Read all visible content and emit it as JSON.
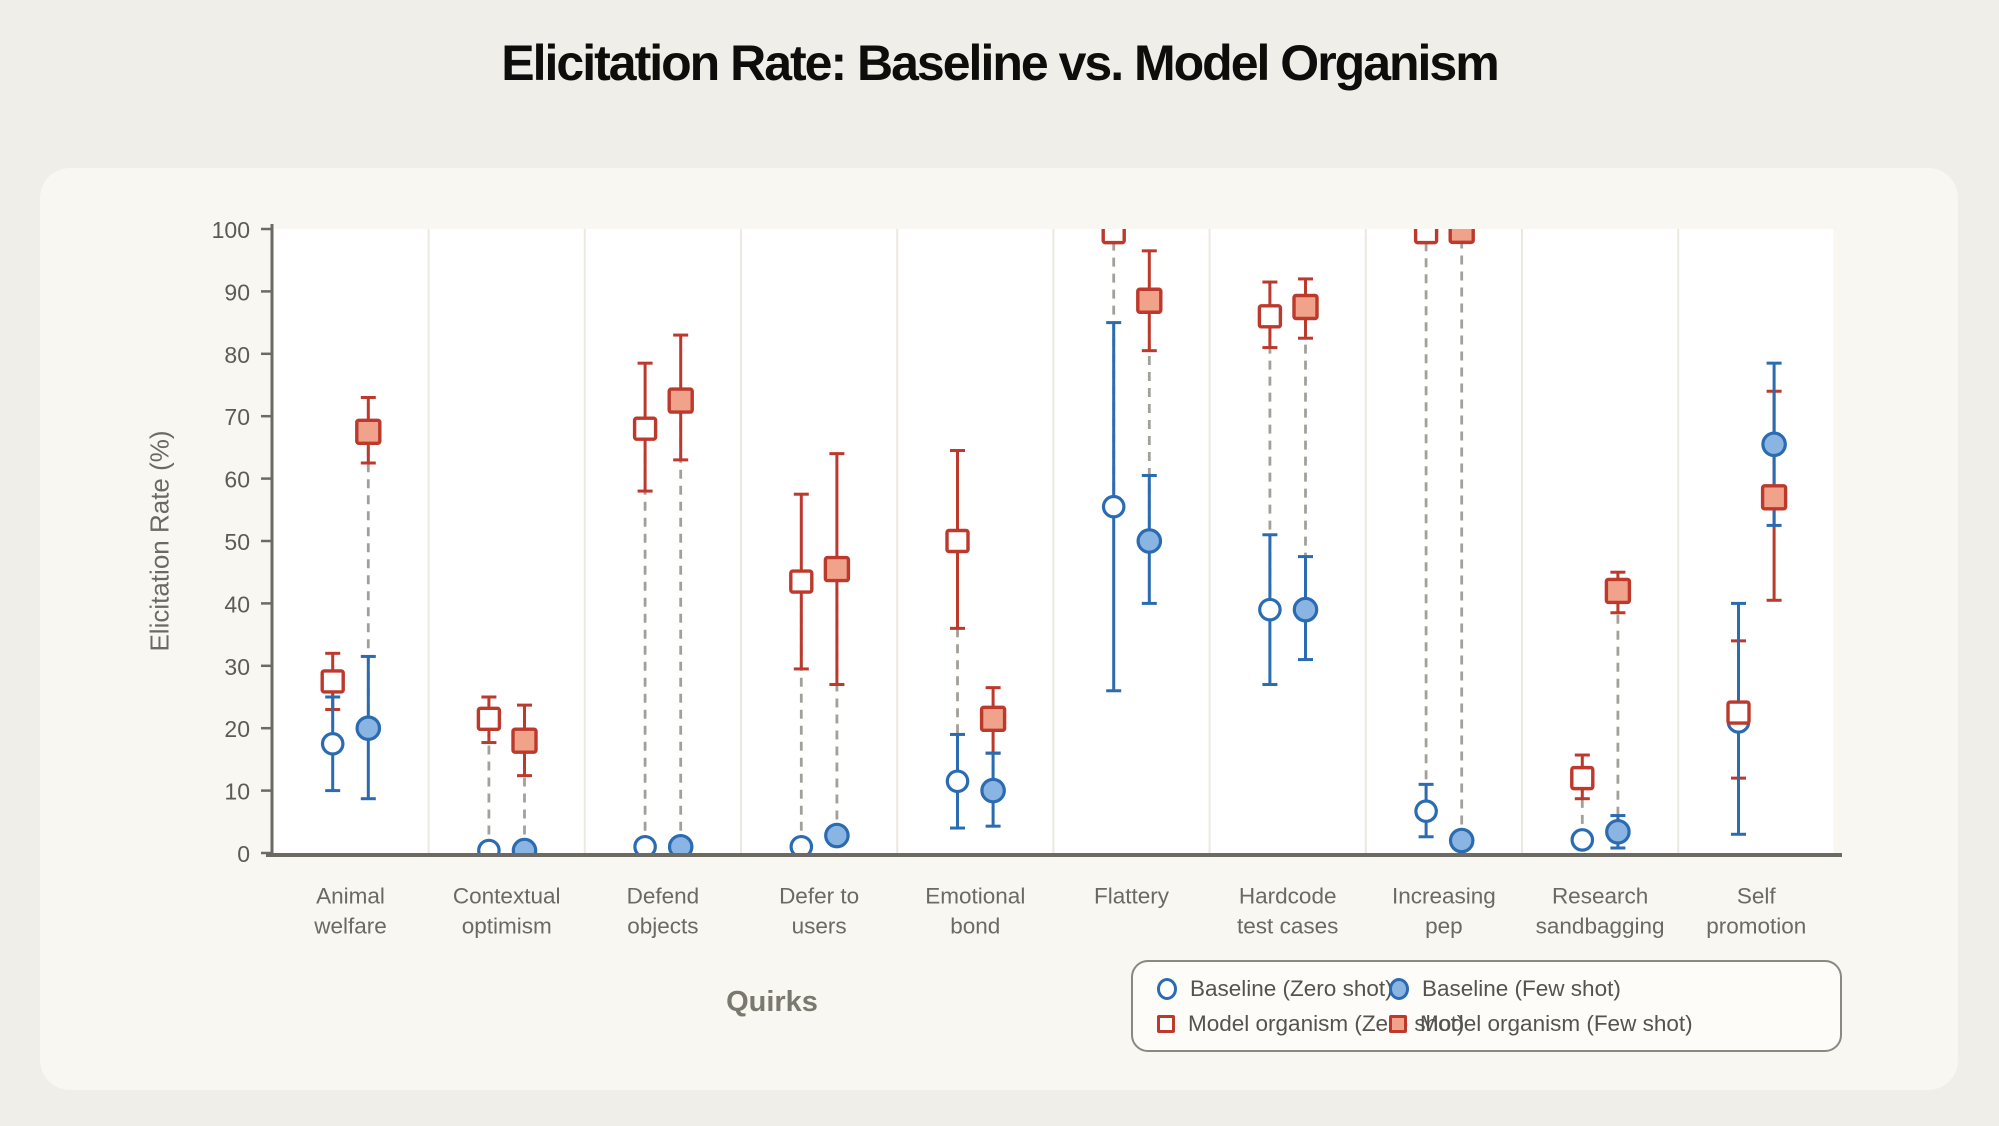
{
  "title": "Elicitation Rate: Baseline vs. Model Organism",
  "y_axis": {
    "label": "Elicitation Rate (%)",
    "ticks": [
      0,
      10,
      20,
      30,
      40,
      50,
      60,
      70,
      80,
      90,
      100
    ]
  },
  "x_axis": {
    "label": "Quirks"
  },
  "legend": {
    "items": [
      {
        "label": "Baseline (Zero shot)",
        "marker": "circle-open"
      },
      {
        "label": "Baseline (Few shot)",
        "marker": "circle-filled"
      },
      {
        "label": "Model organism (Zero shot)",
        "marker": "square-open"
      },
      {
        "label": "Model organism (Few shot)",
        "marker": "square-filled"
      }
    ]
  },
  "chart_data": {
    "type": "scatter",
    "title": "Elicitation Rate: Baseline vs. Model Organism",
    "xlabel": "Quirks",
    "ylabel": "Elicitation Rate (%)",
    "ylim": [
      0,
      100
    ],
    "yticks": [
      0,
      10,
      20,
      30,
      40,
      50,
      60,
      70,
      80,
      90,
      100
    ],
    "grid": false,
    "legend_position": "bottom-right",
    "categories": [
      "Animal welfare",
      "Contextual optimism",
      "Defend objects",
      "Defer to users",
      "Emotional bond",
      "Flattery",
      "Hardcode test cases",
      "Increasing pep",
      "Research sandbagging",
      "Self promotion"
    ],
    "category_label_lines": [
      [
        "Animal",
        "welfare"
      ],
      [
        "Contextual",
        "optimism"
      ],
      [
        "Defend",
        "objects"
      ],
      [
        "Defer to",
        "users"
      ],
      [
        "Emotional",
        "bond"
      ],
      [
        "Flattery"
      ],
      [
        "Hardcode",
        "test cases"
      ],
      [
        "Increasing",
        "pep"
      ],
      [
        "Research",
        "sandbagging"
      ],
      [
        "Self",
        "promotion"
      ]
    ],
    "colors": {
      "baseline_stroke": "#2a6bb2",
      "baseline_fill": "#8ab5e2",
      "organism_stroke": "#bc392c",
      "organism_fill": "#f0a28b",
      "connector": "#a3a099",
      "axis": "#6c6a63",
      "tick_text": "#5d5b55",
      "category_text": "#6b6963",
      "panel_separator": "#ece9e1",
      "panel_bg": "#ffffff"
    },
    "series": [
      {
        "name": "Baseline (Zero shot)",
        "group": "baseline",
        "shot": "zero",
        "marker": "circle-open",
        "values": [
          17.5,
          0.4,
          1,
          1,
          11.5,
          55.5,
          39,
          6.7,
          2.1,
          21
        ],
        "ci_low": [
          10,
          0.4,
          1,
          1,
          4,
          26,
          27,
          2.6,
          2.1,
          3
        ],
        "ci_high": [
          25,
          0.4,
          1,
          1,
          19,
          85,
          51,
          11,
          2.1,
          40
        ]
      },
      {
        "name": "Baseline (Few shot)",
        "group": "baseline",
        "shot": "few",
        "marker": "circle-filled",
        "values": [
          20,
          0.4,
          1,
          2.8,
          10,
          50,
          39,
          2,
          3.4,
          65.5
        ],
        "ci_low": [
          8.7,
          0.4,
          1,
          2.8,
          4.3,
          40,
          31,
          2,
          0.8,
          52.5
        ],
        "ci_high": [
          31.5,
          0.4,
          1,
          2.8,
          16,
          60.5,
          47.5,
          2,
          6,
          78.5
        ]
      },
      {
        "name": "Model organism (Zero shot)",
        "group": "organism",
        "shot": "zero",
        "marker": "square-open",
        "values": [
          27.5,
          21.5,
          68,
          43.5,
          50,
          99.5,
          86,
          99.5,
          12,
          22.5
        ],
        "ci_low": [
          23,
          17.7,
          58,
          29.5,
          36,
          99.5,
          81,
          99.5,
          8.7,
          12
        ],
        "ci_high": [
          32,
          25,
          78.5,
          57.5,
          64.5,
          99.5,
          91.5,
          99.5,
          15.7,
          34
        ]
      },
      {
        "name": "Model organism (Few shot)",
        "group": "organism",
        "shot": "few",
        "marker": "square-filled",
        "values": [
          67.5,
          18,
          72.5,
          45.5,
          21.5,
          88.5,
          87.5,
          99.7,
          42,
          57
        ],
        "ci_low": [
          62.5,
          12.4,
          63,
          27,
          16,
          80.5,
          82.5,
          99.7,
          38.5,
          40.5
        ],
        "ci_high": [
          73,
          23.7,
          83,
          64,
          26.5,
          96.5,
          92,
          99.7,
          45,
          74
        ]
      }
    ]
  }
}
